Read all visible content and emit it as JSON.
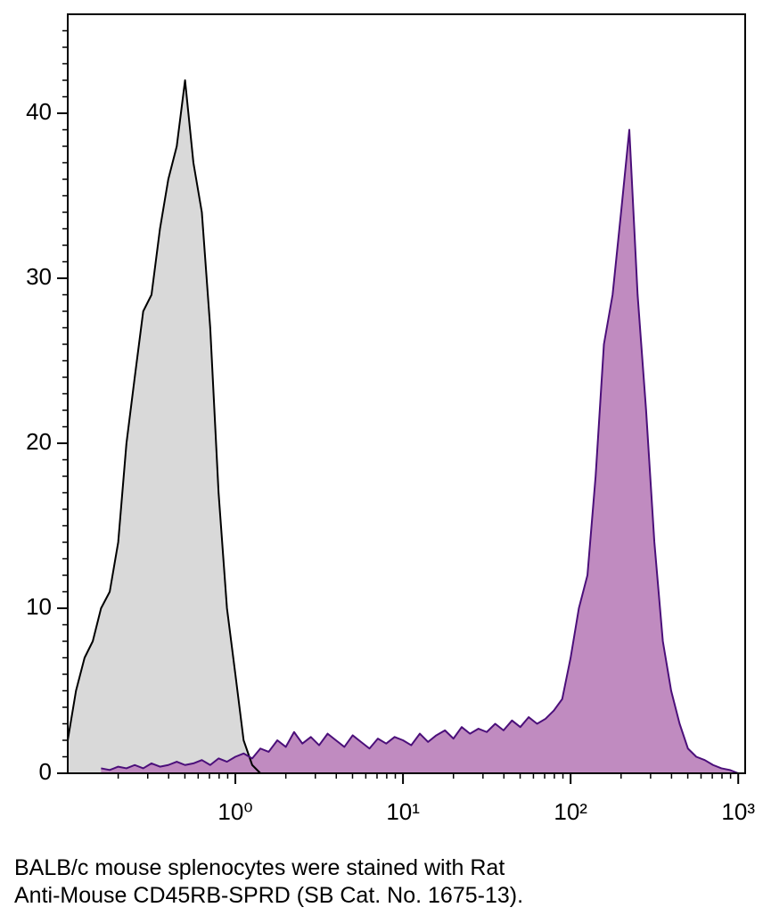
{
  "chart_data": {
    "type": "histogram-overlay",
    "x": [
      0.1,
      0.112,
      0.126,
      0.141,
      0.158,
      0.178,
      0.2,
      0.224,
      0.251,
      0.282,
      0.316,
      0.355,
      0.398,
      0.447,
      0.501,
      0.562,
      0.631,
      0.708,
      0.794,
      0.891,
      1,
      1.12,
      1.26,
      1.41,
      1.58,
      1.78,
      2,
      2.24,
      2.51,
      2.82,
      3.16,
      3.55,
      3.98,
      4.47,
      5.01,
      5.62,
      6.31,
      7.08,
      7.94,
      8.91,
      10,
      11.2,
      12.6,
      14.1,
      15.8,
      17.8,
      20,
      22.4,
      25.1,
      28.2,
      31.6,
      35.5,
      39.8,
      44.7,
      50.1,
      56.2,
      63.1,
      70.8,
      79.4,
      89.1,
      100,
      112,
      126,
      141,
      158,
      178,
      200,
      224,
      251,
      282,
      316,
      355,
      398,
      447,
      501,
      562,
      631,
      708,
      794,
      891,
      1000
    ],
    "series": [
      {
        "color": "#000000",
        "fill": "#d9d9d9",
        "values": [
          2,
          5,
          7,
          8,
          10,
          11,
          14,
          20,
          24,
          28,
          29,
          33,
          36,
          38,
          42,
          37,
          34,
          27,
          17,
          10,
          6,
          2,
          0.5,
          0,
          null,
          null,
          null,
          null,
          null,
          null,
          null,
          null,
          null,
          null,
          null,
          null,
          null,
          null,
          null,
          null,
          null,
          null,
          null,
          null,
          null,
          null,
          null,
          null,
          null,
          null,
          null,
          null,
          null,
          null,
          null,
          null,
          null,
          null,
          null,
          null,
          null,
          null,
          null,
          null,
          null,
          null,
          null,
          null,
          null,
          null,
          null,
          null,
          null,
          null,
          null,
          null,
          null,
          null,
          null,
          null,
          null
        ]
      },
      {
        "color": "#4b0f7a",
        "fill": "#c08bc0",
        "values": [
          null,
          null,
          null,
          null,
          0.3,
          0.2,
          0.4,
          0.3,
          0.5,
          0.3,
          0.6,
          0.4,
          0.5,
          0.7,
          0.5,
          0.6,
          0.8,
          0.5,
          0.9,
          0.7,
          1,
          1.2,
          0.9,
          1.5,
          1.3,
          2,
          1.6,
          2.5,
          1.8,
          2.2,
          1.7,
          2.4,
          2,
          1.6,
          2.3,
          1.9,
          1.5,
          2.1,
          1.8,
          2.2,
          2,
          1.7,
          2.4,
          1.9,
          2.3,
          2.6,
          2.1,
          2.8,
          2.4,
          2.7,
          2.5,
          3,
          2.6,
          3.2,
          2.8,
          3.4,
          3,
          3.3,
          3.8,
          4.5,
          7,
          10,
          12,
          18,
          26,
          29,
          34,
          39,
          29,
          22,
          14,
          8,
          5,
          3,
          1.5,
          1,
          0.8,
          0.5,
          0.3,
          0.2,
          0
        ]
      }
    ],
    "xscale": "log",
    "xlim": [
      0.1,
      1100
    ],
    "xticks": [
      {
        "value": 1,
        "label": "10⁰"
      },
      {
        "value": 10,
        "label": "10¹"
      },
      {
        "value": 100,
        "label": "10²"
      },
      {
        "value": 1000,
        "label": "10³"
      }
    ],
    "xminorticks": [
      0.2,
      0.3,
      0.4,
      0.5,
      0.6,
      0.7,
      0.8,
      0.9,
      2,
      3,
      4,
      5,
      6,
      7,
      8,
      9,
      20,
      30,
      40,
      50,
      60,
      70,
      80,
      90,
      200,
      300,
      400,
      500,
      600,
      700,
      800,
      900
    ],
    "ylim": [
      0,
      46
    ],
    "yticks": [
      0,
      10,
      20,
      30,
      40
    ],
    "yminorticks": [
      1,
      2,
      3,
      4,
      5,
      6,
      7,
      8,
      9,
      11,
      12,
      13,
      14,
      15,
      16,
      17,
      18,
      19,
      21,
      22,
      23,
      24,
      25,
      26,
      27,
      28,
      29,
      31,
      32,
      33,
      34,
      35,
      36,
      37,
      38,
      39,
      41,
      42,
      43,
      44,
      45
    ],
    "caption": [
      "BALB/c mouse splenocytes were stained with Rat",
      "Anti-Mouse CD45RB-SPRD (SB Cat. No. 1675-13)."
    ]
  }
}
